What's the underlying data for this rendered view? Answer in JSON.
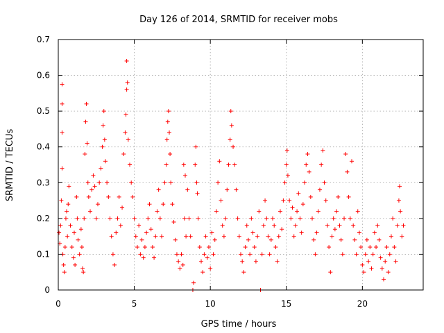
{
  "chart_data": {
    "type": "scatter",
    "title": "Day 126 of 2014, SRMTID for receiver mobs",
    "xlabel": "GPS time / hours",
    "ylabel": "SRMTID / TECUs",
    "xlim": [
      0,
      24
    ],
    "ylim": [
      0,
      0.7
    ],
    "xticks": [
      0,
      5,
      10,
      15,
      20
    ],
    "xtick_labels": [
      "0",
      "5",
      "10",
      "15",
      "20"
    ],
    "yticks": [
      0,
      0.1,
      0.2,
      0.3,
      0.4,
      0.5,
      0.6,
      0.7
    ],
    "ytick_labels": [
      "0",
      "0.1",
      "0.2",
      "0.3",
      "0.4",
      "0.5",
      "0.6",
      "0.7"
    ],
    "grid": true,
    "marker": "+",
    "marker_color": "#ff0000",
    "series": [
      {
        "name": "SRMTID",
        "points": [
          [
            0.05,
            0.16
          ],
          [
            0.1,
            0.13
          ],
          [
            0.15,
            0.18
          ],
          [
            0.2,
            0.25
          ],
          [
            0.25,
            0.34
          ],
          [
            0.25,
            0.44
          ],
          [
            0.25,
            0.52
          ],
          [
            0.25,
            0.575
          ],
          [
            0.3,
            0.1
          ],
          [
            0.35,
            0.07
          ],
          [
            0.4,
            0.05
          ],
          [
            0.45,
            0.12
          ],
          [
            0.5,
            0.2
          ],
          [
            0.55,
            0.22
          ],
          [
            0.6,
            0.15
          ],
          [
            0.65,
            0.24
          ],
          [
            0.7,
            0.29
          ],
          [
            0.8,
            0.18
          ],
          [
            0.9,
            0.12
          ],
          [
            1.0,
            0.09
          ],
          [
            1.05,
            0.16
          ],
          [
            1.1,
            0.07
          ],
          [
            1.2,
            0.26
          ],
          [
            1.25,
            0.2
          ],
          [
            1.3,
            0.14
          ],
          [
            1.4,
            0.1
          ],
          [
            1.5,
            0.17
          ],
          [
            1.55,
            0.12
          ],
          [
            1.6,
            0.06
          ],
          [
            1.65,
            0.05
          ],
          [
            1.7,
            0.2
          ],
          [
            1.75,
            0.38
          ],
          [
            1.8,
            0.47
          ],
          [
            1.85,
            0.52
          ],
          [
            1.9,
            0.41
          ],
          [
            1.95,
            0.3
          ],
          [
            2.0,
            0.26
          ],
          [
            2.1,
            0.22
          ],
          [
            2.2,
            0.28
          ],
          [
            2.3,
            0.32
          ],
          [
            2.4,
            0.29
          ],
          [
            2.5,
            0.2
          ],
          [
            2.6,
            0.24
          ],
          [
            2.7,
            0.3
          ],
          [
            2.8,
            0.34
          ],
          [
            2.9,
            0.4
          ],
          [
            2.95,
            0.46
          ],
          [
            3.0,
            0.5
          ],
          [
            3.05,
            0.42
          ],
          [
            3.1,
            0.36
          ],
          [
            3.2,
            0.3
          ],
          [
            3.3,
            0.26
          ],
          [
            3.4,
            0.2
          ],
          [
            3.5,
            0.15
          ],
          [
            3.6,
            0.1
          ],
          [
            3.7,
            0.07
          ],
          [
            3.8,
            0.16
          ],
          [
            3.9,
            0.2
          ],
          [
            4.0,
            0.26
          ],
          [
            4.1,
            0.18
          ],
          [
            4.2,
            0.23
          ],
          [
            4.3,
            0.38
          ],
          [
            4.4,
            0.44
          ],
          [
            4.45,
            0.49
          ],
          [
            4.5,
            0.56
          ],
          [
            4.5,
            0.64
          ],
          [
            4.55,
            0.58
          ],
          [
            4.6,
            0.42
          ],
          [
            4.7,
            0.35
          ],
          [
            4.8,
            0.3
          ],
          [
            4.9,
            0.26
          ],
          [
            5.0,
            0.2
          ],
          [
            5.1,
            0.15
          ],
          [
            5.2,
            0.12
          ],
          [
            5.3,
            0.18
          ],
          [
            5.4,
            0.1
          ],
          [
            5.5,
            0.14
          ],
          [
            5.6,
            0.09
          ],
          [
            5.7,
            0.12
          ],
          [
            5.8,
            0.16
          ],
          [
            5.9,
            0.2
          ],
          [
            6.0,
            0.24
          ],
          [
            6.1,
            0.17
          ],
          [
            6.2,
            0.12
          ],
          [
            6.3,
            0.09
          ],
          [
            6.4,
            0.15
          ],
          [
            6.5,
            0.22
          ],
          [
            6.6,
            0.28
          ],
          [
            6.7,
            0.2
          ],
          [
            6.8,
            0.15
          ],
          [
            6.9,
            0.24
          ],
          [
            7.0,
            0.3
          ],
          [
            7.1,
            0.35
          ],
          [
            7.15,
            0.42
          ],
          [
            7.2,
            0.47
          ],
          [
            7.25,
            0.5
          ],
          [
            7.3,
            0.44
          ],
          [
            7.35,
            0.38
          ],
          [
            7.4,
            0.3
          ],
          [
            7.5,
            0.24
          ],
          [
            7.6,
            0.19
          ],
          [
            7.7,
            0.14
          ],
          [
            7.8,
            0.1
          ],
          [
            7.9,
            0.08
          ],
          [
            8.0,
            0.06
          ],
          [
            8.1,
            0.1
          ],
          [
            8.2,
            0.07
          ],
          [
            8.25,
            0.35
          ],
          [
            8.3,
            0.2
          ],
          [
            8.35,
            0.32
          ],
          [
            8.4,
            0.15
          ],
          [
            8.5,
            0.28
          ],
          [
            8.6,
            0.2
          ],
          [
            8.7,
            0.15
          ],
          [
            8.85,
            0.0
          ],
          [
            8.9,
            0.02
          ],
          [
            9.0,
            0.35
          ],
          [
            9.05,
            0.4
          ],
          [
            9.1,
            0.3
          ],
          [
            9.15,
            0.27
          ],
          [
            9.2,
            0.2
          ],
          [
            9.3,
            0.12
          ],
          [
            9.4,
            0.08
          ],
          [
            9.5,
            0.05
          ],
          [
            9.6,
            0.1
          ],
          [
            9.7,
            0.15
          ],
          [
            9.8,
            0.09
          ],
          [
            9.9,
            0.12
          ],
          [
            10.0,
            0.06
          ],
          [
            10.1,
            0.16
          ],
          [
            10.2,
            0.1
          ],
          [
            10.3,
            0.14
          ],
          [
            10.4,
            0.22
          ],
          [
            10.5,
            0.3
          ],
          [
            10.6,
            0.36
          ],
          [
            10.7,
            0.25
          ],
          [
            10.8,
            0.18
          ],
          [
            10.9,
            0.15
          ],
          [
            11.0,
            0.2
          ],
          [
            11.1,
            0.28
          ],
          [
            11.2,
            0.35
          ],
          [
            11.3,
            0.42
          ],
          [
            11.35,
            0.5
          ],
          [
            11.4,
            0.46
          ],
          [
            11.5,
            0.4
          ],
          [
            11.6,
            0.35
          ],
          [
            11.7,
            0.28
          ],
          [
            11.8,
            0.2
          ],
          [
            11.9,
            0.15
          ],
          [
            12.0,
            0.1
          ],
          [
            12.1,
            0.08
          ],
          [
            12.2,
            0.05
          ],
          [
            12.3,
            0.12
          ],
          [
            12.4,
            0.18
          ],
          [
            12.5,
            0.14
          ],
          [
            12.6,
            0.1
          ],
          [
            12.7,
            0.2
          ],
          [
            12.8,
            0.16
          ],
          [
            12.9,
            0.12
          ],
          [
            13.0,
            0.08
          ],
          [
            13.1,
            0.15
          ],
          [
            13.2,
            0.22
          ],
          [
            13.3,
            0.0
          ],
          [
            13.4,
            0.1
          ],
          [
            13.5,
            0.18
          ],
          [
            13.6,
            0.25
          ],
          [
            13.7,
            0.2
          ],
          [
            13.8,
            0.15
          ],
          [
            13.9,
            0.1
          ],
          [
            14.0,
            0.14
          ],
          [
            14.1,
            0.2
          ],
          [
            14.2,
            0.18
          ],
          [
            14.3,
            0.12
          ],
          [
            14.4,
            0.08
          ],
          [
            14.5,
            0.15
          ],
          [
            14.6,
            0.22
          ],
          [
            14.7,
            0.17
          ],
          [
            14.8,
            0.25
          ],
          [
            14.9,
            0.3
          ],
          [
            15.0,
            0.35
          ],
          [
            15.05,
            0.39
          ],
          [
            15.1,
            0.32
          ],
          [
            15.2,
            0.25
          ],
          [
            15.3,
            0.2
          ],
          [
            15.4,
            0.23
          ],
          [
            15.5,
            0.15
          ],
          [
            15.6,
            0.18
          ],
          [
            15.7,
            0.22
          ],
          [
            15.8,
            0.27
          ],
          [
            15.9,
            0.2
          ],
          [
            16.0,
            0.16
          ],
          [
            16.1,
            0.24
          ],
          [
            16.2,
            0.3
          ],
          [
            16.3,
            0.35
          ],
          [
            16.4,
            0.38
          ],
          [
            16.5,
            0.33
          ],
          [
            16.6,
            0.26
          ],
          [
            16.7,
            0.2
          ],
          [
            16.8,
            0.14
          ],
          [
            16.9,
            0.1
          ],
          [
            17.0,
            0.16
          ],
          [
            17.1,
            0.22
          ],
          [
            17.2,
            0.28
          ],
          [
            17.3,
            0.35
          ],
          [
            17.4,
            0.39
          ],
          [
            17.5,
            0.3
          ],
          [
            17.6,
            0.25
          ],
          [
            17.7,
            0.18
          ],
          [
            17.8,
            0.12
          ],
          [
            17.9,
            0.05
          ],
          [
            18.0,
            0.15
          ],
          [
            18.1,
            0.2
          ],
          [
            18.2,
            0.17
          ],
          [
            18.3,
            0.22
          ],
          [
            18.4,
            0.26
          ],
          [
            18.5,
            0.18
          ],
          [
            18.6,
            0.14
          ],
          [
            18.7,
            0.1
          ],
          [
            18.8,
            0.2
          ],
          [
            18.9,
            0.38
          ],
          [
            19.0,
            0.33
          ],
          [
            19.1,
            0.26
          ],
          [
            19.2,
            0.2
          ],
          [
            19.3,
            0.36
          ],
          [
            19.4,
            0.18
          ],
          [
            19.5,
            0.14
          ],
          [
            19.6,
            0.1
          ],
          [
            19.7,
            0.22
          ],
          [
            19.8,
            0.16
          ],
          [
            19.9,
            0.12
          ],
          [
            20.0,
            0.07
          ],
          [
            20.1,
            0.05
          ],
          [
            20.2,
            0.1
          ],
          [
            20.3,
            0.14
          ],
          [
            20.4,
            0.08
          ],
          [
            20.5,
            0.12
          ],
          [
            20.6,
            0.06
          ],
          [
            20.7,
            0.1
          ],
          [
            20.8,
            0.16
          ],
          [
            20.9,
            0.12
          ],
          [
            21.0,
            0.18
          ],
          [
            21.1,
            0.14
          ],
          [
            21.2,
            0.09
          ],
          [
            21.3,
            0.06
          ],
          [
            21.4,
            0.03
          ],
          [
            21.5,
            0.08
          ],
          [
            21.6,
            0.12
          ],
          [
            21.7,
            0.05
          ],
          [
            21.8,
            0.1
          ],
          [
            21.9,
            0.15
          ],
          [
            22.0,
            0.2
          ],
          [
            22.1,
            0.12
          ],
          [
            22.2,
            0.08
          ],
          [
            22.3,
            0.18
          ],
          [
            22.4,
            0.25
          ],
          [
            22.45,
            0.29
          ],
          [
            22.5,
            0.22
          ],
          [
            22.6,
            0.15
          ],
          [
            22.7,
            0.18
          ]
        ]
      }
    ]
  }
}
